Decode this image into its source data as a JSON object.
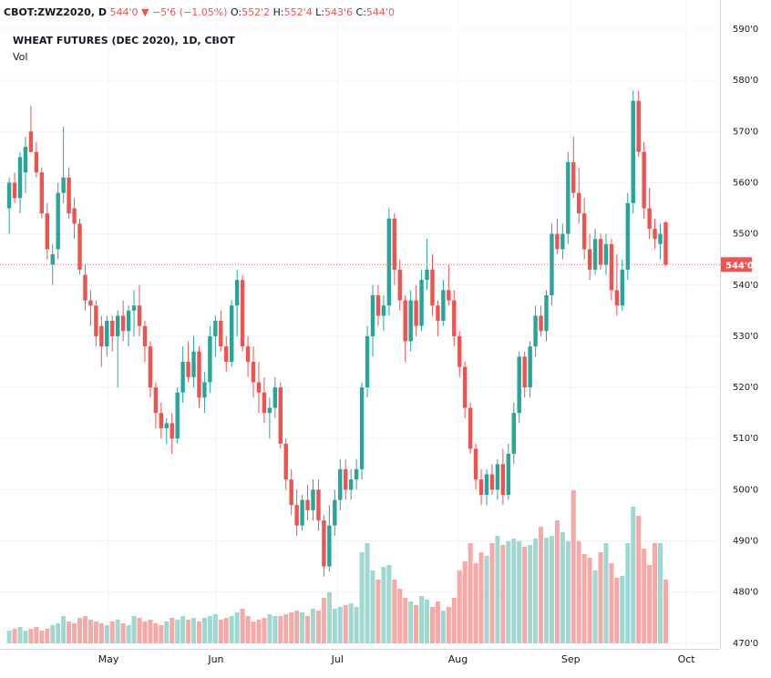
{
  "chart_data": {
    "type": "candlestick",
    "header": {
      "symbol": "CBOT:ZWZ2020, D",
      "last": "544'0",
      "arrow": "▼",
      "change": "−5'6 (−1.05%)",
      "ohlc": [
        {
          "key": "O:",
          "value": "552'2"
        },
        {
          "key": "H:",
          "value": "552'4"
        },
        {
          "key": "L:",
          "value": "543'6"
        },
        {
          "key": "C:",
          "value": "544'0"
        }
      ]
    },
    "title": "WHEAT FUTURES (DEC 2020), 1D, CBOT",
    "volume_label": "Vol",
    "colors": {
      "up": "#26a69a",
      "down": "#ef5350",
      "up_volume": "#9fd7d1",
      "down_volume": "#f7a9a7"
    },
    "last_price": {
      "value": 544,
      "label": "544'0"
    },
    "ylim": [
      468.9,
      595.7
    ],
    "yticks": [
      {
        "value": 470,
        "label": "470'0"
      },
      {
        "value": 480,
        "label": "480'0"
      },
      {
        "value": 490,
        "label": "490'0"
      },
      {
        "value": 500,
        "label": "500'0"
      },
      {
        "value": 510,
        "label": "510'0"
      },
      {
        "value": 520,
        "label": "520'0"
      },
      {
        "value": 530,
        "label": "530'0"
      },
      {
        "value": 540,
        "label": "540'0"
      },
      {
        "value": 550,
        "label": "550'0"
      },
      {
        "value": 560,
        "label": "560'0"
      },
      {
        "value": 570,
        "label": "570'0"
      },
      {
        "value": 580,
        "label": "580'0"
      },
      {
        "value": 590,
        "label": "590'0"
      }
    ],
    "xlim": [
      -1.7,
      131
    ],
    "xticks": [
      {
        "value": 18.3,
        "label": "May"
      },
      {
        "value": 38.1,
        "label": "Jun"
      },
      {
        "value": 60.5,
        "label": "Jul"
      },
      {
        "value": 82.7,
        "label": "Aug"
      },
      {
        "value": 103.5,
        "label": "Sep"
      },
      {
        "value": 124.8,
        "label": "Oct"
      }
    ],
    "grid": true,
    "ohlc": [
      [
        555,
        561,
        550,
        560
      ],
      [
        560,
        562,
        556,
        557
      ],
      [
        557,
        566,
        554,
        565
      ],
      [
        562,
        569,
        558,
        567
      ],
      [
        570,
        575,
        566,
        566
      ],
      [
        566,
        568,
        561,
        562
      ],
      [
        562,
        563,
        553,
        554
      ],
      [
        554,
        556,
        545,
        547
      ],
      [
        544,
        548,
        540,
        546
      ],
      [
        547,
        560,
        545,
        558
      ],
      [
        558,
        571,
        556,
        561
      ],
      [
        561,
        563,
        553,
        554
      ],
      [
        555,
        557,
        549,
        552
      ],
      [
        552,
        553,
        542,
        543
      ],
      [
        542,
        544,
        535,
        537
      ],
      [
        537,
        539,
        532,
        536
      ],
      [
        536,
        537,
        528,
        530
      ],
      [
        532,
        534,
        524,
        528
      ],
      [
        528,
        534,
        526,
        533
      ],
      [
        533,
        534,
        527,
        530
      ],
      [
        530,
        535,
        520,
        534
      ],
      [
        534,
        537,
        529,
        531
      ],
      [
        531,
        536,
        528,
        535
      ],
      [
        535,
        539,
        530,
        536
      ],
      [
        536,
        540,
        530,
        532
      ],
      [
        532,
        533,
        525,
        528
      ],
      [
        528,
        529,
        518,
        520
      ],
      [
        520,
        521,
        512,
        515
      ],
      [
        515,
        517,
        510,
        512
      ],
      [
        512,
        514,
        509,
        513
      ],
      [
        513,
        515,
        507,
        510
      ],
      [
        510,
        520,
        509,
        519
      ],
      [
        519,
        528,
        517,
        525
      ],
      [
        525,
        529,
        521,
        522
      ],
      [
        522,
        530,
        520,
        527
      ],
      [
        527,
        528,
        516,
        518
      ],
      [
        518,
        523,
        515,
        521
      ],
      [
        521,
        532,
        519,
        530
      ],
      [
        530,
        534,
        526,
        533
      ],
      [
        533,
        535,
        527,
        528
      ],
      [
        528,
        530,
        523,
        525
      ],
      [
        525,
        537,
        524,
        536
      ],
      [
        536,
        543,
        530,
        541
      ],
      [
        541,
        542,
        527,
        528
      ],
      [
        528,
        530,
        522,
        525
      ],
      [
        525,
        528,
        518,
        521
      ],
      [
        521,
        525,
        515,
        519
      ],
      [
        519,
        522,
        513,
        515
      ],
      [
        515,
        518,
        510,
        516
      ],
      [
        516,
        522,
        514,
        520
      ],
      [
        520,
        521,
        508,
        509
      ],
      [
        509,
        510,
        500,
        502
      ],
      [
        502,
        504,
        495,
        497
      ],
      [
        497,
        500,
        491,
        493
      ],
      [
        493,
        499,
        492,
        498
      ],
      [
        498,
        501,
        494,
        496
      ],
      [
        496,
        502,
        494,
        500
      ],
      [
        500,
        502,
        492,
        494
      ],
      [
        494,
        495,
        483,
        485
      ],
      [
        485,
        497,
        484,
        493
      ],
      [
        493,
        500,
        491,
        498
      ],
      [
        498,
        506,
        496,
        504
      ],
      [
        504,
        506,
        498,
        500
      ],
      [
        500,
        504,
        498,
        502
      ],
      [
        502,
        506,
        500,
        504
      ],
      [
        504,
        521,
        502,
        520
      ],
      [
        520,
        532,
        518,
        530
      ],
      [
        530,
        540,
        526,
        538
      ],
      [
        538,
        540,
        532,
        534
      ],
      [
        534,
        538,
        531,
        536
      ],
      [
        536,
        555,
        534,
        553
      ],
      [
        553,
        554,
        540,
        543
      ],
      [
        543,
        545,
        535,
        537
      ],
      [
        537,
        538,
        525,
        529
      ],
      [
        529,
        539,
        527,
        537
      ],
      [
        537,
        540,
        530,
        532
      ],
      [
        532,
        543,
        531,
        541
      ],
      [
        541,
        549,
        539,
        543
      ],
      [
        543,
        546,
        534,
        536
      ],
      [
        536,
        537,
        530,
        533
      ],
      [
        533,
        541,
        532,
        539
      ],
      [
        539,
        544,
        536,
        537
      ],
      [
        537,
        539,
        528,
        530
      ],
      [
        530,
        531,
        522,
        524
      ],
      [
        524,
        525,
        514,
        516
      ],
      [
        516,
        517,
        507,
        508
      ],
      [
        508,
        509,
        500,
        502
      ],
      [
        502,
        504,
        497,
        499
      ],
      [
        499,
        504,
        497,
        503
      ],
      [
        503,
        505,
        499,
        500
      ],
      [
        500,
        506,
        498,
        505
      ],
      [
        505,
        508,
        497,
        499
      ],
      [
        499,
        509,
        498,
        507
      ],
      [
        507,
        517,
        505,
        515
      ],
      [
        515,
        527,
        513,
        526
      ],
      [
        526,
        527,
        518,
        520
      ],
      [
        520,
        529,
        518,
        528
      ],
      [
        528,
        536,
        526,
        534
      ],
      [
        534,
        536,
        530,
        531
      ],
      [
        531,
        539,
        529,
        538
      ],
      [
        538,
        552,
        536,
        550
      ],
      [
        550,
        553,
        546,
        547
      ],
      [
        547,
        552,
        545,
        550
      ],
      [
        550,
        566,
        548,
        564
      ],
      [
        564,
        569,
        557,
        558
      ],
      [
        558,
        563,
        552,
        554
      ],
      [
        554,
        557,
        545,
        547
      ],
      [
        547,
        550,
        541,
        543
      ],
      [
        543,
        551,
        542,
        549
      ],
      [
        549,
        550,
        543,
        544
      ],
      [
        544,
        550,
        542,
        548
      ],
      [
        548,
        549,
        537,
        539
      ],
      [
        539,
        546,
        534,
        536
      ],
      [
        536,
        545,
        535,
        543
      ],
      [
        543,
        558,
        541,
        556
      ],
      [
        556,
        578,
        554,
        576
      ],
      [
        576,
        578,
        565,
        566
      ],
      [
        566,
        568,
        553,
        555
      ],
      [
        555,
        559,
        549,
        551
      ],
      [
        551,
        553,
        547,
        549
      ],
      [
        548,
        552,
        545,
        550
      ],
      [
        552.25,
        552.5,
        543.75,
        544
      ]
    ],
    "vlim": [
      0,
      240
    ],
    "volume": [
      14,
      16,
      18,
      14,
      16,
      18,
      14,
      16,
      20,
      22,
      30,
      24,
      22,
      28,
      30,
      26,
      24,
      22,
      20,
      24,
      26,
      22,
      20,
      30,
      28,
      24,
      26,
      22,
      20,
      24,
      28,
      26,
      30,
      26,
      28,
      24,
      28,
      30,
      32,
      26,
      28,
      30,
      34,
      38,
      30,
      24,
      26,
      28,
      32,
      30,
      30,
      32,
      34,
      36,
      34,
      30,
      38,
      36,
      50,
      56,
      38,
      40,
      42,
      44,
      40,
      100,
      110,
      80,
      70,
      84,
      86,
      70,
      60,
      50,
      46,
      42,
      52,
      48,
      40,
      46,
      36,
      40,
      50,
      80,
      90,
      110,
      88,
      100,
      96,
      110,
      118,
      108,
      112,
      115,
      112,
      106,
      108,
      115,
      128,
      116,
      118,
      135,
      122,
      112,
      168,
      112,
      98,
      94,
      80,
      100,
      110,
      88,
      72,
      74,
      110,
      150,
      140,
      104,
      86,
      110,
      110,
      70
    ]
  }
}
